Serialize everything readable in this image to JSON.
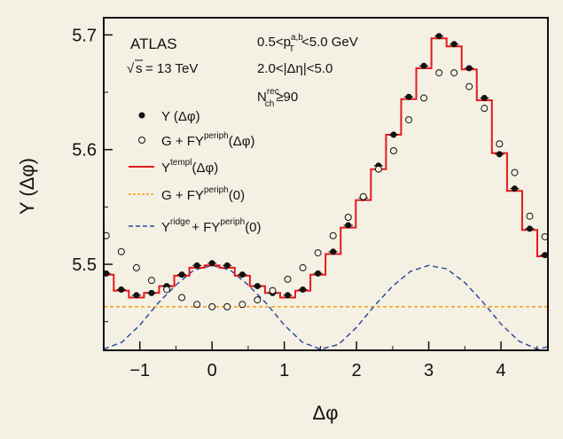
{
  "chart_data": {
    "type": "line",
    "xlabel": "Δφ",
    "ylabel": "Y (Δφ)",
    "xlim": [
      -1.5,
      4.65
    ],
    "ylim": [
      5.425,
      5.715
    ],
    "x_ticks": [
      -1,
      0,
      1,
      2,
      3,
      4
    ],
    "y_ticks": [
      5.5,
      5.6,
      5.7
    ],
    "grid": false,
    "annotations": {
      "experiment": "ATLAS",
      "energy_prefix": "s",
      "energy_value": "= 13 TeV",
      "pt_range": {
        "left": "0.5<p",
        "sup": "a,b",
        "sub": "T",
        "right": "<5.0 GeV"
      },
      "eta_range": "2.0<|Δη|<5.0",
      "nch": {
        "left": "N",
        "sup": "rec",
        "sub": "ch",
        "right": "≥90"
      }
    },
    "legend": {
      "placement": "top-left",
      "entries": [
        {
          "id": "Y",
          "marker": "filled-circle",
          "text": "Y (Δφ)"
        },
        {
          "id": "G",
          "marker": "open-circle",
          "text": "G + FY",
          "sup": "periph",
          "tail": "(Δφ)"
        },
        {
          "id": "templ",
          "marker": "red-line",
          "text": "Y",
          "sup": "templ",
          "tail": "(Δφ)"
        },
        {
          "id": "flat",
          "marker": "orange-dash",
          "text": "G + FY",
          "sup": "periph",
          "tail": "(0)"
        },
        {
          "id": "ridge",
          "marker": "blue-dash",
          "text": "Y",
          "sup": "ridge",
          "mid": "+ FY",
          "sup2": "periph",
          "tail": "(0)"
        }
      ]
    },
    "series": [
      {
        "name": "Y (Δφ)",
        "x": [
          -1.466,
          -1.257,
          -1.047,
          -0.838,
          -0.628,
          -0.419,
          -0.209,
          0.0,
          0.209,
          0.419,
          0.628,
          0.838,
          1.047,
          1.257,
          1.466,
          1.676,
          1.885,
          2.094,
          2.304,
          2.513,
          2.723,
          2.932,
          3.142,
          3.351,
          3.56,
          3.77,
          3.979,
          4.189,
          4.398,
          4.608
        ],
        "y": [
          5.492,
          5.478,
          5.473,
          5.475,
          5.481,
          5.491,
          5.499,
          5.501,
          5.499,
          5.491,
          5.481,
          5.475,
          5.473,
          5.478,
          5.492,
          5.511,
          5.534,
          5.558,
          5.586,
          5.613,
          5.646,
          5.673,
          5.699,
          5.692,
          5.671,
          5.645,
          5.596,
          5.566,
          5.531,
          5.508
        ]
      },
      {
        "name": "G + FY",
        "name_sup": "periph",
        "name_tail": "(Δφ)",
        "x": [
          -1.466,
          -1.257,
          -1.047,
          -0.838,
          -0.628,
          -0.419,
          -0.209,
          0.0,
          0.209,
          0.419,
          0.628,
          0.838,
          1.047,
          1.257,
          1.466,
          1.676,
          1.885,
          2.094,
          2.304,
          2.513,
          2.723,
          2.932,
          3.142,
          3.351,
          3.56,
          3.77,
          3.979,
          4.189,
          4.398,
          4.608
        ],
        "y": [
          5.525,
          5.511,
          5.497,
          5.486,
          5.478,
          5.471,
          5.465,
          5.463,
          5.463,
          5.465,
          5.469,
          5.477,
          5.487,
          5.497,
          5.51,
          5.525,
          5.541,
          5.559,
          5.583,
          5.599,
          5.626,
          5.645,
          5.667,
          5.667,
          5.655,
          5.636,
          5.605,
          5.58,
          5.542,
          5.524
        ]
      },
      {
        "name": "Y",
        "name_sup": "templ",
        "name_tail": "(Δφ)",
        "style": "red-step",
        "x": [
          -1.466,
          -1.257,
          -1.047,
          -0.838,
          -0.628,
          -0.419,
          -0.209,
          0.0,
          0.209,
          0.419,
          0.628,
          0.838,
          1.047,
          1.257,
          1.466,
          1.676,
          1.885,
          2.094,
          2.304,
          2.513,
          2.723,
          2.932,
          3.142,
          3.351,
          3.56,
          3.77,
          3.979,
          4.189,
          4.398,
          4.608
        ],
        "y": [
          5.491,
          5.477,
          5.471,
          5.475,
          5.481,
          5.49,
          5.497,
          5.499,
          5.497,
          5.49,
          5.481,
          5.475,
          5.471,
          5.477,
          5.491,
          5.509,
          5.532,
          5.556,
          5.583,
          5.613,
          5.644,
          5.671,
          5.697,
          5.69,
          5.67,
          5.643,
          5.597,
          5.564,
          5.53,
          5.507
        ]
      },
      {
        "name": "G + FY",
        "name_sup": "periph",
        "name_tail": "(0)",
        "style": "orange-dash",
        "constant": 5.463
      },
      {
        "name": "Y",
        "name_sup": "ridge",
        "name_mid": "+ FY",
        "name_sup2": "periph",
        "name_tail": "(0)",
        "style": "blue-dash",
        "x": [
          -1.5,
          -1.25,
          -1.0,
          -0.75,
          -0.5,
          -0.25,
          0.0,
          0.25,
          0.5,
          0.75,
          1.0,
          1.25,
          1.5,
          1.75,
          2.0,
          2.25,
          2.5,
          2.75,
          3.0,
          3.25,
          3.5,
          3.75,
          4.0,
          4.25,
          4.5,
          4.65
        ],
        "y": [
          5.426,
          5.432,
          5.447,
          5.466,
          5.482,
          5.495,
          5.499,
          5.495,
          5.482,
          5.466,
          5.447,
          5.432,
          5.426,
          5.43,
          5.445,
          5.464,
          5.481,
          5.494,
          5.499,
          5.496,
          5.484,
          5.467,
          5.448,
          5.433,
          5.426,
          5.428
        ]
      }
    ]
  },
  "colors": {
    "background": "#f5f0e4",
    "templ": "#e31a1c",
    "flat": "#f39c12",
    "ridge": "#2a4d9b",
    "axis": "#111111"
  }
}
